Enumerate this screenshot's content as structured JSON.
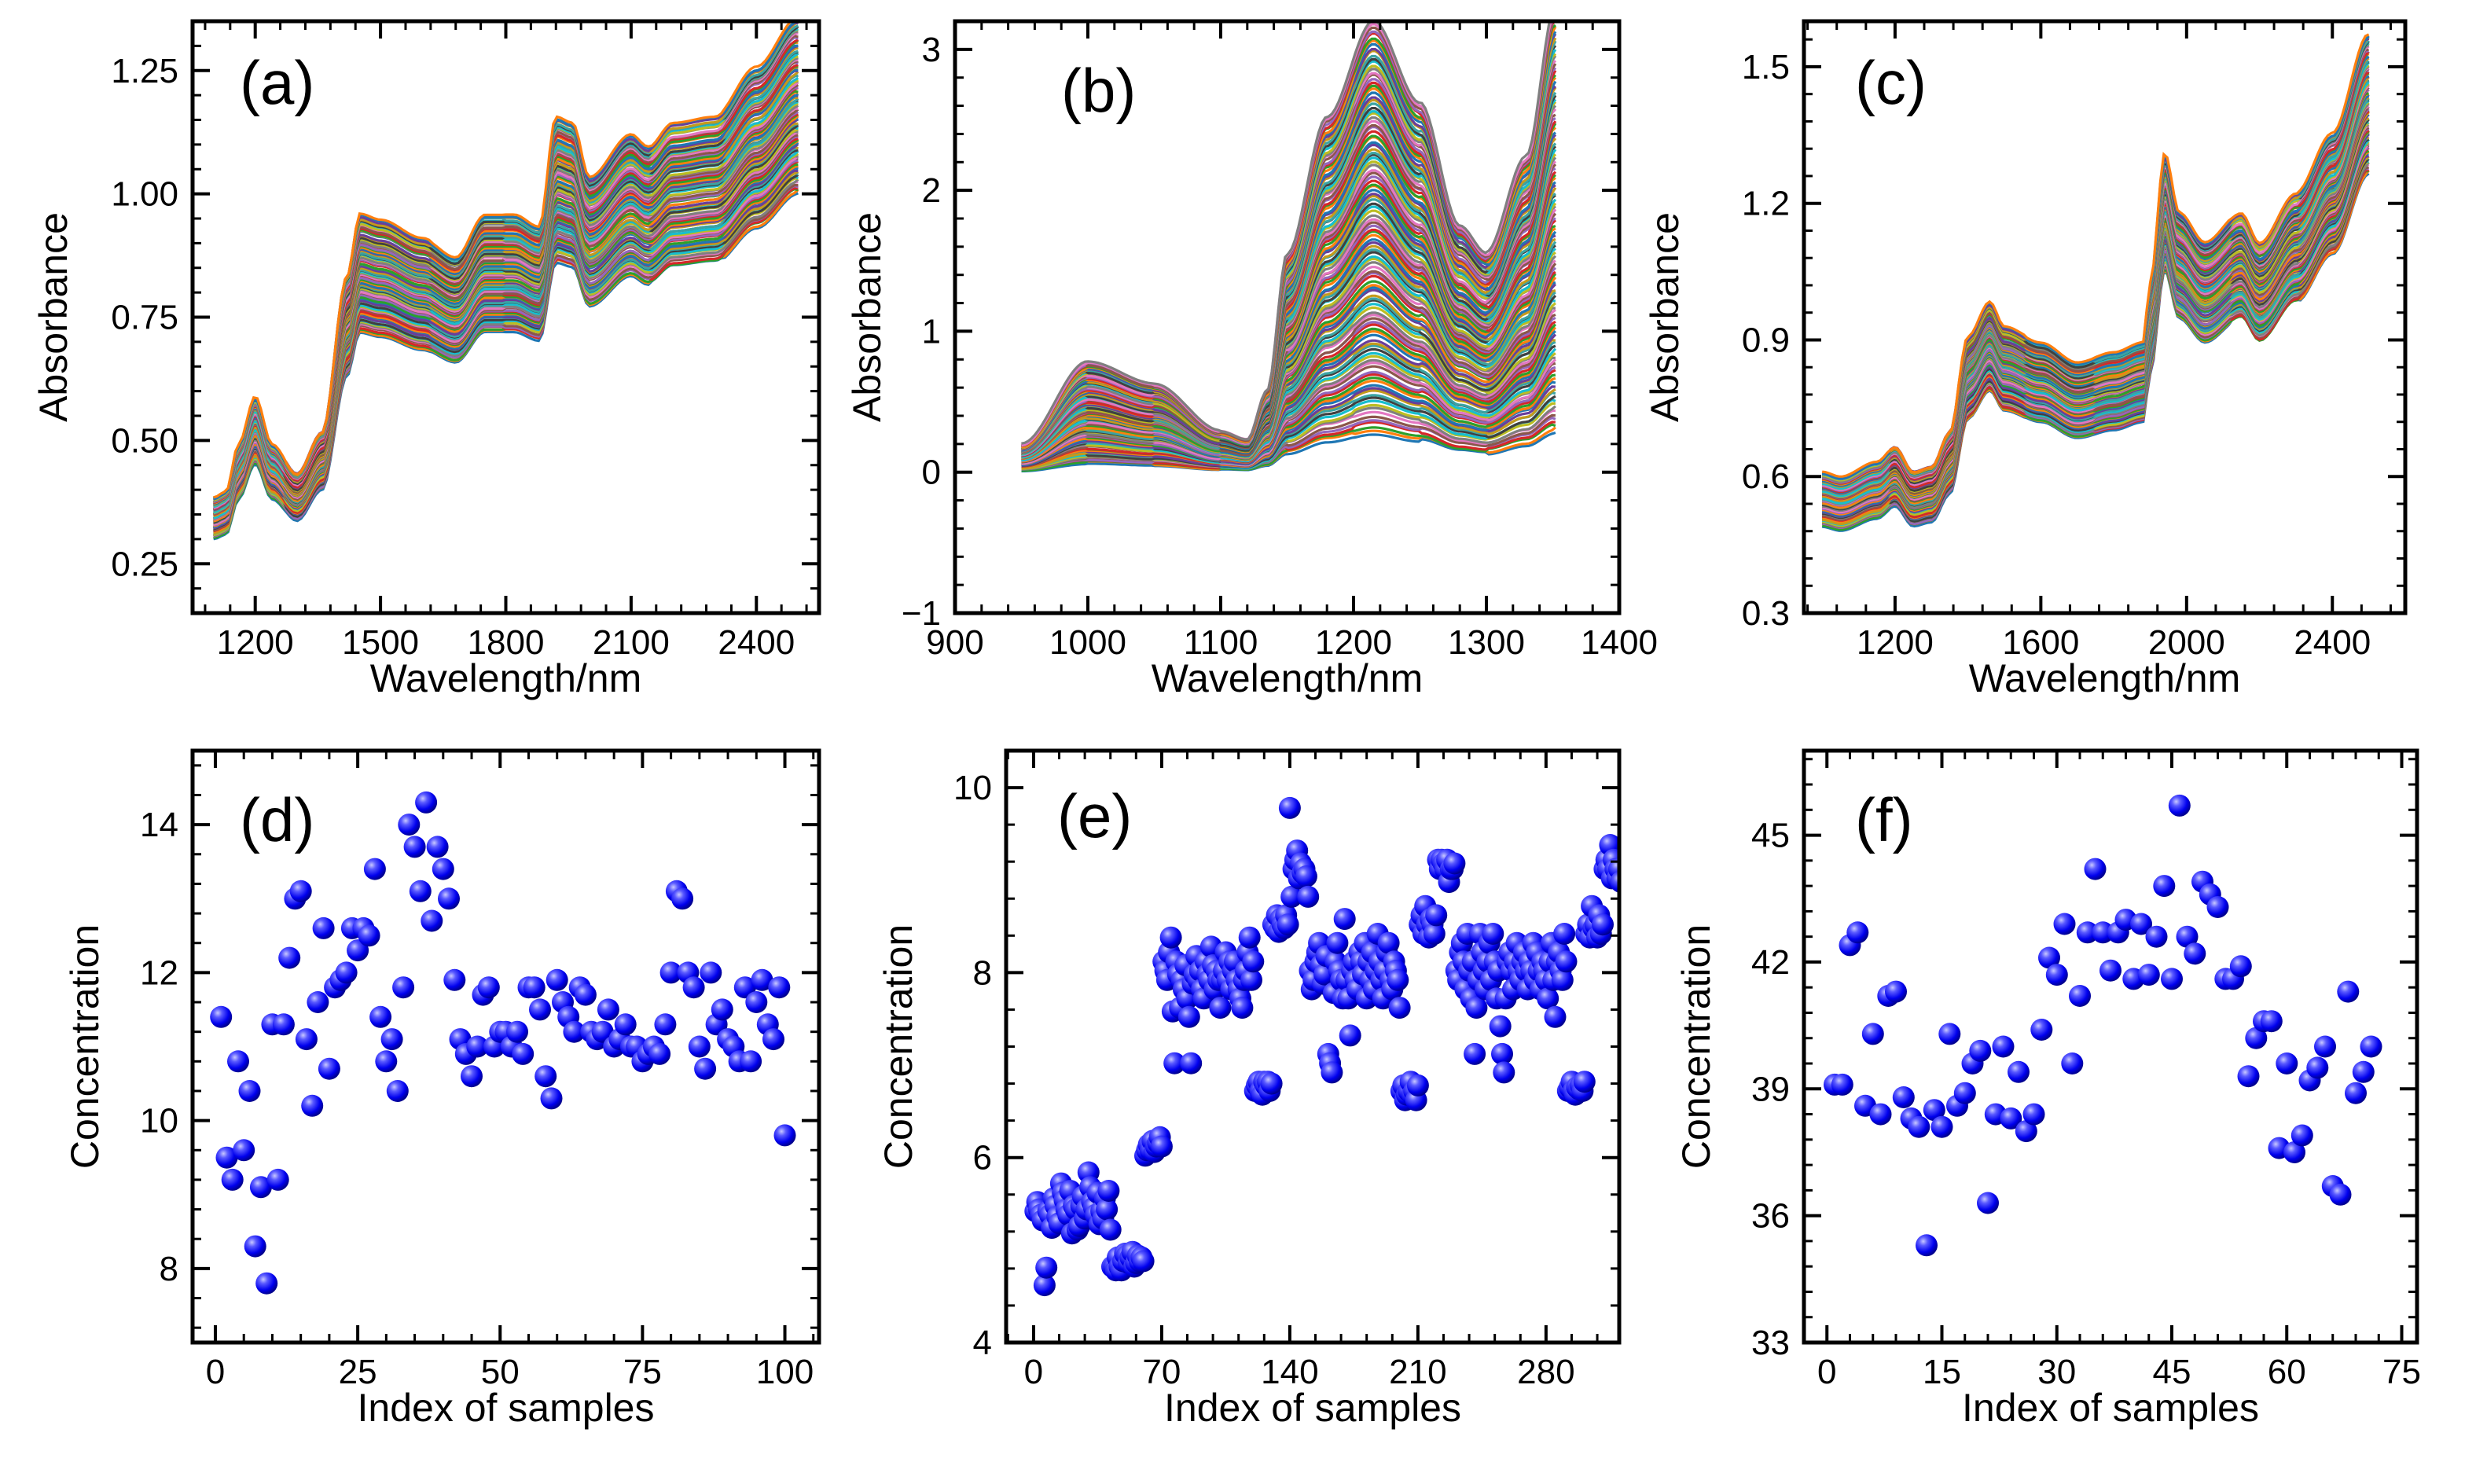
{
  "chart_data": [
    {
      "panel": "(a)",
      "type": "line",
      "xlabel": "Wavelength/nm",
      "ylabel": "Absorbance",
      "xlim": [
        1050,
        2550
      ],
      "ylim": [
        0.15,
        1.35
      ],
      "xticks": [
        1200,
        1500,
        1800,
        2100,
        2400
      ],
      "yticks": [
        0.25,
        0.5,
        0.75,
        1.0,
        1.25
      ],
      "ytick_labels": [
        "0.25",
        "0.50",
        "0.75",
        "1.00",
        "1.25"
      ],
      "n_series": 100,
      "base_x": [
        1100,
        1130,
        1160,
        1200,
        1240,
        1300,
        1360,
        1420,
        1450,
        1500,
        1600,
        1680,
        1750,
        1820,
        1880,
        1920,
        1960,
        2000,
        2100,
        2140,
        2200,
        2300,
        2400,
        2500
      ],
      "base_y": [
        0.33,
        0.34,
        0.42,
        0.5,
        0.42,
        0.37,
        0.44,
        0.7,
        0.8,
        0.79,
        0.76,
        0.73,
        0.8,
        0.8,
        0.78,
        0.96,
        0.95,
        0.86,
        0.93,
        0.91,
        0.95,
        0.96,
        1.04,
        1.12
      ],
      "offset_range": [
        -0.07,
        0.14
      ],
      "spread_power": 1.2
    },
    {
      "panel": "(b)",
      "type": "line",
      "xlabel": "Wavelength/nm",
      "ylabel": "Absorbance",
      "xlim": [
        900,
        1400
      ],
      "ylim": [
        -1,
        3.2
      ],
      "xticks": [
        900,
        1000,
        1100,
        1200,
        1300,
        1400
      ],
      "yticks": [
        -1,
        0,
        1,
        2,
        3
      ],
      "ytick_labels": [
        "−1",
        "0",
        "1",
        "2",
        "3"
      ],
      "n_series": 120,
      "base_x": [
        950,
        1000,
        1050,
        1100,
        1120,
        1135,
        1150,
        1180,
        1215,
        1250,
        1280,
        1300,
        1330,
        1352
      ],
      "base_y": [
        0.1,
        0.4,
        0.32,
        0.15,
        0.12,
        0.3,
        0.8,
        1.3,
        1.65,
        1.35,
        0.9,
        0.8,
        1.15,
        1.7
      ],
      "offset_range": [
        -0.75,
        0.85
      ],
      "spread_power": 1.0
    },
    {
      "panel": "(c)",
      "type": "line",
      "xlabel": "Wavelength/nm",
      "ylabel": "Absorbance",
      "xlim": [
        950,
        2600
      ],
      "ylim": [
        0.3,
        1.6
      ],
      "xticks": [
        1200,
        1600,
        2000,
        2400
      ],
      "yticks": [
        0.3,
        0.6,
        0.9,
        1.2,
        1.5
      ],
      "ytick_labels": [
        "0.3",
        "0.6",
        "0.9",
        "1.2",
        "1.5"
      ],
      "n_series": 100,
      "base_x": [
        1000,
        1050,
        1150,
        1200,
        1250,
        1300,
        1350,
        1400,
        1460,
        1500,
        1600,
        1700,
        1800,
        1880,
        1900,
        1940,
        1980,
        2050,
        2150,
        2200,
        2300,
        2400,
        2500
      ],
      "base_y": [
        0.56,
        0.55,
        0.58,
        0.61,
        0.56,
        0.57,
        0.64,
        0.83,
        0.9,
        0.85,
        0.82,
        0.78,
        0.8,
        0.82,
        0.94,
        1.2,
        1.08,
        1.02,
        1.08,
        1.02,
        1.12,
        1.24,
        1.44
      ],
      "offset_range": [
        -0.12,
        0.09
      ],
      "spread_power": 1.0
    },
    {
      "panel": "(d)",
      "type": "scatter",
      "xlabel": "Index of samples",
      "ylabel": "Concentration",
      "xlim": [
        -4,
        106
      ],
      "ylim": [
        7,
        15
      ],
      "xticks": [
        0,
        25,
        50,
        75,
        100
      ],
      "yticks": [
        8,
        10,
        12,
        14
      ],
      "ytick_labels": [
        "8",
        "10",
        "12",
        "14"
      ],
      "values": [
        11.4,
        9.5,
        9.2,
        10.8,
        9.6,
        10.4,
        8.3,
        9.1,
        7.8,
        11.3,
        9.2,
        11.3,
        12.2,
        13.0,
        13.1,
        11.1,
        10.2,
        11.6,
        12.6,
        10.7,
        11.8,
        11.9,
        12.0,
        12.6,
        12.3,
        12.6,
        12.5,
        13.4,
        11.4,
        10.8,
        11.1,
        10.4,
        11.8,
        14.0,
        13.7,
        13.1,
        14.3,
        12.7,
        13.7,
        13.4,
        13.0,
        11.9,
        11.1,
        10.9,
        10.6,
        11.0,
        11.7,
        11.8,
        11.0,
        11.2,
        11.2,
        11.0,
        11.2,
        10.9,
        11.8,
        11.8,
        11.5,
        10.6,
        10.3,
        11.9,
        11.6,
        11.4,
        11.2,
        11.8,
        11.7,
        11.2,
        11.1,
        11.2,
        11.5,
        11.0,
        11.1,
        11.3,
        11.0,
        11.0,
        10.8,
        10.9,
        11.0,
        10.9,
        11.3,
        12.0,
        13.1,
        13.0,
        12.0,
        11.8,
        11.0,
        10.7,
        12.0,
        11.3,
        11.5,
        11.1,
        11.0,
        10.8,
        11.8,
        10.8,
        11.6,
        11.9,
        11.3,
        11.1,
        11.8,
        9.8
      ]
    },
    {
      "panel": "(e)",
      "type": "scatter",
      "xlabel": "Index of samples",
      "ylabel": "Concentration",
      "xlim": [
        -15,
        320
      ],
      "ylim": [
        4,
        10.4
      ],
      "xticks": [
        0,
        70,
        140,
        210,
        280
      ],
      "yticks": [
        4,
        6,
        8,
        10
      ],
      "ytick_labels": [
        "4",
        "6",
        "8",
        "10"
      ],
      "values": [
        5.42,
        5.52,
        5.44,
        5.38,
        5.32,
        4.62,
        4.81,
        5.42,
        5.38,
        5.24,
        5.56,
        5.48,
        5.36,
        5.29,
        5.72,
        5.62,
        5.54,
        5.44,
        5.38,
        5.64,
        5.18,
        5.48,
        5.44,
        5.22,
        5.26,
        5.48,
        5.58,
        5.34,
        5.44,
        5.84,
        5.68,
        5.52,
        5.46,
        5.38,
        5.62,
        5.28,
        5.42,
        5.34,
        5.56,
        5.44,
        5.64,
        5.22,
        4.82,
        4.82,
        4.78,
        4.92,
        4.82,
        4.78,
        4.88,
        4.96,
        4.94,
        4.86,
        4.92,
        4.98,
        4.82,
        4.86,
        4.94,
        4.88,
        4.92,
        4.88,
        6.02,
        6.08,
        6.14,
        6.08,
        6.18,
        6.06,
        6.12,
        6.16,
        6.22,
        6.12,
        8.12,
        8.02,
        7.92,
        8.22,
        8.38,
        7.58,
        7.02,
        8.12,
        7.98,
        7.62,
        7.92,
        7.82,
        8.08,
        7.72,
        7.52,
        7.02,
        7.88,
        7.98,
        8.18,
        7.92,
        8.02,
        7.82,
        7.72,
        8.12,
        7.98,
        7.92,
        8.28,
        8.08,
        7.82,
        8.02,
        7.92,
        7.62,
        7.92,
        8.02,
        8.22,
        7.92,
        8.12,
        7.82,
        8.02,
        8.12,
        7.92,
        7.82,
        7.72,
        7.62,
        7.92,
        8.02,
        8.22,
        8.38,
        7.92,
        8.12,
        6.72,
        6.78,
        6.82,
        6.72,
        6.68,
        6.82,
        6.78,
        6.82,
        6.72,
        6.8,
        8.52,
        8.48,
        8.62,
        8.44,
        8.58,
        8.52,
        8.48,
        8.62,
        8.52,
        9.78,
        8.82,
        9.12,
        9.22,
        9.32,
        9.02,
        9.18,
        9.08,
        9.12,
        9.04,
        8.82,
        8.02,
        7.82,
        7.92,
        8.12,
        8.22,
        8.32,
        8.08,
        7.88,
        7.98,
        8.18,
        7.12,
        7.02,
        6.92,
        7.78,
        8.12,
        8.32,
        8.02,
        7.92,
        7.72,
        8.58,
        7.92,
        7.72,
        7.32,
        8.02,
        8.12,
        7.92,
        7.82,
        8.22,
        8.12,
        7.98,
        8.32,
        7.72,
        8.12,
        7.92,
        8.22,
        7.82,
        8.02,
        8.42,
        8.12,
        7.92,
        7.72,
        8.02,
        8.22,
        8.32,
        7.92,
        7.82,
        8.12,
        8.02,
        7.92,
        7.62,
        6.72,
        6.78,
        6.62,
        6.68,
        6.72,
        6.82,
        6.68,
        6.72,
        6.62,
        6.78,
        8.52,
        8.62,
        8.42,
        8.72,
        8.52,
        8.38,
        8.58,
        8.52,
        8.42,
        8.62,
        9.22,
        9.12,
        9.22,
        9.18,
        9.12,
        9.22,
        8.98,
        9.12,
        9.12,
        9.18,
        8.02,
        7.92,
        8.22,
        8.32,
        8.12,
        7.82,
        8.42,
        8.02,
        7.72,
        8.12,
        7.12,
        7.62,
        7.92,
        8.42,
        8.22,
        8.02,
        7.82,
        8.12,
        8.32,
        7.92,
        8.42,
        8.12,
        7.72,
        8.02,
        7.42,
        7.12,
        6.92,
        7.72,
        8.12,
        8.22,
        8.02,
        7.82,
        8.12,
        8.32,
        8.02,
        7.92,
        8.12,
        8.22,
        8.02,
        7.82,
        8.12,
        8.02,
        8.32,
        7.92,
        8.22,
        8.02,
        7.82,
        8.12,
        8.02,
        7.92,
        7.72,
        8.12,
        8.32,
        7.92,
        7.52,
        8.12,
        8.22,
        8.02,
        7.92,
        8.42,
        8.12,
        6.72,
        6.76,
        6.82,
        6.72,
        6.68,
        6.76,
        6.74,
        6.78,
        6.72,
        6.82,
        8.42,
        8.52,
        8.38,
        8.72,
        8.48,
        8.52,
        8.38,
        8.62,
        8.42,
        8.52,
        9.12,
        9.22,
        9.12,
        9.38,
        9.02,
        9.22,
        9.12,
        9.02,
        9.12,
        8.98
      ]
    },
    {
      "panel": "(f)",
      "type": "scatter",
      "xlabel": "Index of samples",
      "ylabel": "Concentration",
      "xlim": [
        -3,
        77
      ],
      "ylim": [
        33,
        47
      ],
      "xticks": [
        0,
        15,
        30,
        45,
        60,
        75
      ],
      "yticks": [
        33,
        36,
        39,
        42,
        45
      ],
      "ytick_labels": [
        "33",
        "36",
        "39",
        "42",
        "45"
      ],
      "values": [
        39.1,
        39.1,
        42.4,
        42.7,
        38.6,
        40.3,
        38.4,
        41.2,
        41.3,
        38.8,
        38.3,
        38.1,
        35.3,
        38.5,
        38.1,
        40.3,
        38.6,
        38.9,
        39.6,
        39.9,
        36.3,
        38.4,
        40.0,
        38.3,
        39.4,
        38.0,
        38.4,
        40.4,
        42.1,
        41.7,
        42.9,
        39.6,
        41.2,
        42.7,
        44.2,
        42.7,
        41.8,
        42.7,
        43.0,
        41.6,
        42.9,
        41.7,
        42.6,
        43.8,
        41.6,
        45.7,
        42.6,
        42.2,
        43.9,
        43.6,
        43.3,
        41.6,
        41.6,
        41.9,
        39.3,
        40.2,
        40.6,
        40.6,
        37.6,
        39.6,
        37.5,
        37.9,
        39.2,
        39.5,
        40.0,
        36.7,
        36.5,
        41.3,
        38.9,
        39.4,
        40.0
      ]
    }
  ]
}
